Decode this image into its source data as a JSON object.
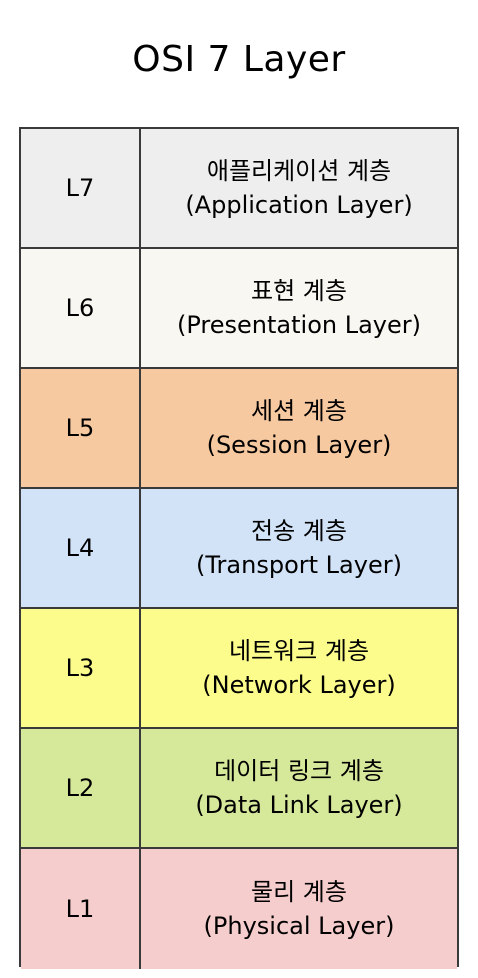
{
  "title": "OSI 7 Layer",
  "layers": [
    {
      "id": "L7",
      "korean": "애플리케이션 계층",
      "english": "(Application Layer)",
      "color": "#eeeeee"
    },
    {
      "id": "L6",
      "korean": "표현 계층",
      "english": "(Presentation Layer)",
      "color": "#f9f7f1"
    },
    {
      "id": "L5",
      "korean": "세션 계층",
      "english": "(Session Layer)",
      "color": "#f7c9a0"
    },
    {
      "id": "L4",
      "korean": "전송 계층",
      "english": "(Transport Layer)",
      "color": "#d2e3f8"
    },
    {
      "id": "L3",
      "korean": "네트워크 계층",
      "english": "(Network Layer)",
      "color": "#fcfc8c"
    },
    {
      "id": "L2",
      "korean": "데이터 링크 계층",
      "english": "(Data Link Layer)",
      "color": "#d6e89a"
    },
    {
      "id": "L1",
      "korean": "물리 계층",
      "english": "(Physical Layer)",
      "color": "#f6cdcd"
    }
  ]
}
